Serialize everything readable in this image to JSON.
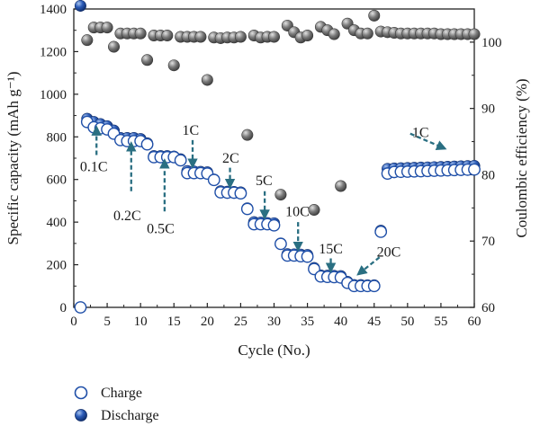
{
  "chart_data": {
    "type": "scatter",
    "xlabel": "Cycle (No.)",
    "ylabel_left": "Specific capacity (mAh g⁻¹)",
    "ylabel_right": "Coulombic efficiency (%)",
    "xlim": [
      0,
      60
    ],
    "ylim_left": [
      0,
      1400
    ],
    "ylim_right": [
      60,
      105
    ],
    "xticks": [
      0,
      5,
      10,
      15,
      20,
      25,
      30,
      35,
      40,
      45,
      50,
      55,
      60
    ],
    "yticks_left": [
      0,
      200,
      400,
      600,
      800,
      1000,
      1200,
      1400
    ],
    "yticks_right": [
      60,
      70,
      80,
      90,
      100
    ],
    "grid": false,
    "legend_position": "bottom-left",
    "colors": {
      "charge_edge": "#1f4fa8",
      "discharge_fill": "#1f4fa8",
      "efficiency_fill": "#707070",
      "arrow": "#2a6f82"
    },
    "series": [
      {
        "name": "Charge",
        "axis": "left",
        "marker": "open-circle",
        "x": [
          1,
          2,
          3,
          4,
          5,
          6,
          7,
          8,
          9,
          10,
          11,
          12,
          13,
          14,
          15,
          16,
          17,
          18,
          19,
          20,
          21,
          22,
          23,
          24,
          25,
          26,
          27,
          28,
          29,
          30,
          31,
          32,
          33,
          34,
          35,
          36,
          37,
          38,
          39,
          40,
          41,
          42,
          43,
          44,
          45,
          46,
          47,
          48,
          49,
          50,
          51,
          52,
          53,
          54,
          55,
          56,
          57,
          58,
          59,
          60
        ],
        "y": [
          0,
          870,
          845,
          840,
          835,
          815,
          785,
          780,
          780,
          780,
          765,
          705,
          705,
          705,
          705,
          690,
          630,
          630,
          630,
          628,
          598,
          540,
          538,
          538,
          535,
          462,
          390,
          390,
          390,
          385,
          298,
          243,
          243,
          240,
          238,
          180,
          145,
          143,
          142,
          140,
          115,
          100,
          100,
          100,
          100,
          355,
          628,
          635,
          636,
          637,
          638,
          639,
          640,
          641,
          642,
          643,
          644,
          645,
          646,
          647
        ]
      },
      {
        "name": "Discharge",
        "axis": "left",
        "marker": "filled-circle",
        "x": [
          1,
          2,
          3,
          4,
          5,
          6,
          7,
          8,
          9,
          10,
          11,
          12,
          13,
          14,
          15,
          16,
          17,
          18,
          19,
          20,
          21,
          22,
          23,
          24,
          25,
          26,
          27,
          28,
          29,
          30,
          31,
          32,
          33,
          34,
          35,
          36,
          37,
          38,
          39,
          40,
          41,
          42,
          43,
          44,
          45,
          46,
          47,
          48,
          49,
          50,
          51,
          52,
          53,
          54,
          55,
          56,
          57,
          58,
          59,
          60
        ],
        "y": [
          1415,
          885,
          870,
          860,
          850,
          830,
          795,
          795,
          795,
          790,
          770,
          710,
          710,
          710,
          708,
          695,
          640,
          638,
          636,
          634,
          600,
          545,
          543,
          542,
          540,
          465,
          400,
          398,
          396,
          395,
          300,
          250,
          249,
          248,
          246,
          185,
          150,
          149,
          148,
          147,
          120,
          105,
          105,
          104,
          104,
          360,
          650,
          652,
          653,
          654,
          655,
          656,
          657,
          658,
          659,
          660,
          661,
          662,
          663,
          664
        ]
      },
      {
        "name": "",
        "axis": "right",
        "marker": "filled-circle",
        "x": [
          2,
          3,
          4,
          5,
          6,
          7,
          8,
          9,
          10,
          11,
          12,
          13,
          14,
          15,
          16,
          17,
          18,
          19,
          20,
          21,
          22,
          23,
          24,
          25,
          26,
          27,
          28,
          29,
          30,
          31,
          32,
          33,
          34,
          35,
          36,
          37,
          38,
          39,
          40,
          41,
          42,
          43,
          44,
          45,
          46,
          47,
          48,
          49,
          50,
          51,
          52,
          53,
          54,
          55,
          56,
          57,
          58,
          59,
          60
        ],
        "y": [
          100.3,
          102.2,
          102.2,
          102.2,
          99.3,
          101.3,
          101.3,
          101.3,
          101.3,
          97.3,
          101.0,
          101.0,
          101.0,
          96.5,
          100.8,
          100.8,
          100.8,
          100.8,
          94.3,
          100.7,
          100.6,
          100.7,
          100.7,
          100.8,
          86.0,
          101.0,
          100.7,
          100.8,
          100.8,
          77.0,
          102.5,
          101.5,
          100.7,
          101.0,
          74.7,
          102.3,
          101.8,
          101.2,
          78.3,
          102.8,
          101.8,
          101.3,
          101.3,
          104.0,
          101.6,
          101.5,
          101.4,
          101.3,
          101.3,
          101.3,
          101.3,
          101.3,
          101.3,
          101.2,
          101.2,
          101.2,
          101.2,
          101.2,
          101.2
        ]
      }
    ],
    "annotations": [
      {
        "text": "0.1C",
        "x": 3,
        "y": 660
      },
      {
        "text": "0.2C",
        "x": 8,
        "y": 430
      },
      {
        "text": "0.5C",
        "x": 13,
        "y": 370
      },
      {
        "text": "1C",
        "x": 17.5,
        "y": 830
      },
      {
        "text": "2C",
        "x": 23.5,
        "y": 700
      },
      {
        "text": "5C",
        "x": 28.5,
        "y": 595
      },
      {
        "text": "10C",
        "x": 33.5,
        "y": 450
      },
      {
        "text": "15C",
        "x": 38.5,
        "y": 275
      },
      {
        "text": "20C",
        "x": 47,
        "y": 260
      },
      {
        "text": "1C",
        "x": 54,
        "y": 820
      }
    ]
  }
}
